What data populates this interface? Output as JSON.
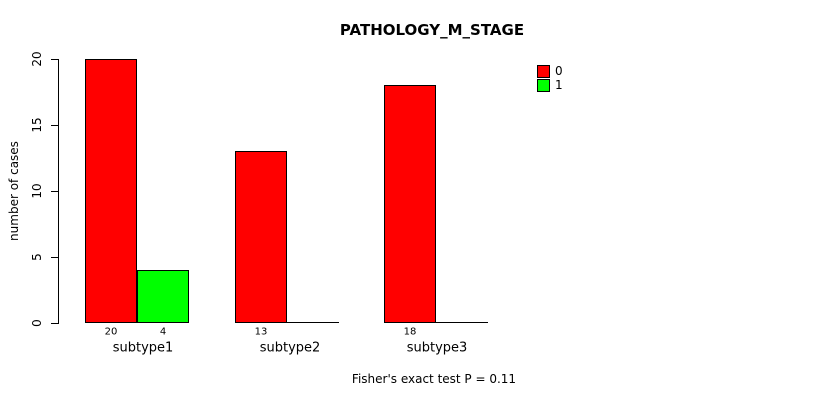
{
  "title": "PATHOLOGY_M_STAGE",
  "y_axis": {
    "label": "number of cases",
    "ticks": [
      "0",
      "5",
      "10",
      "15",
      "20"
    ]
  },
  "legend": {
    "items": [
      {
        "label": "0",
        "color": "#ff0000"
      },
      {
        "label": "1",
        "color": "#00ff00"
      }
    ]
  },
  "footer": {
    "text": "Fisher's exact test P = 0.11"
  },
  "chart_data": {
    "type": "bar",
    "title": "PATHOLOGY_M_STAGE",
    "categories": [
      "subtype1",
      "subtype2",
      "subtype3"
    ],
    "series": [
      {
        "name": "0",
        "color": "#ff0000",
        "values": [
          20,
          13,
          18
        ],
        "value_labels": [
          "20",
          "13",
          "18"
        ]
      },
      {
        "name": "1",
        "color": "#00ff00",
        "values": [
          4,
          0,
          0
        ],
        "value_labels": [
          "4",
          "",
          ""
        ]
      }
    ],
    "xlabel": "",
    "ylabel": "number of cases",
    "ylim": [
      0,
      20
    ],
    "yticks": [
      0,
      5,
      10,
      15,
      20
    ],
    "grid": false,
    "legend_position": "top-right",
    "annotation": "Fisher's exact test P = 0.11"
  }
}
